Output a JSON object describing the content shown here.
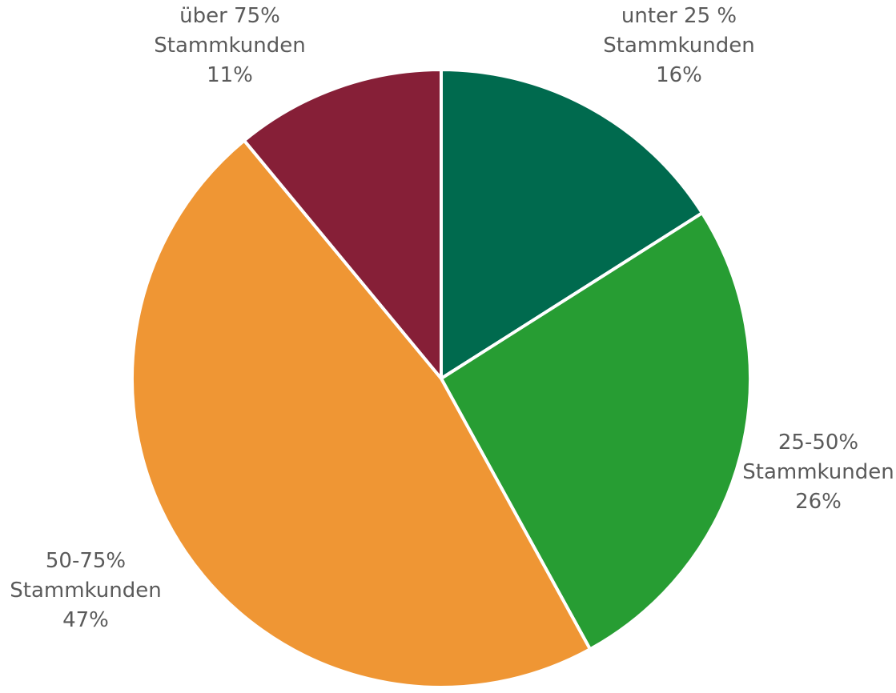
{
  "chart_data": {
    "type": "pie",
    "title": "",
    "start_angle_deg": 0,
    "direction": "clockwise",
    "slices": [
      {
        "line1": "unter 25 %",
        "line2": "Stammkunden",
        "line3": "16%",
        "value": 16,
        "color": "#006a4e"
      },
      {
        "line1": "25-50%",
        "line2": "Stammkunden",
        "line3": "26%",
        "value": 26,
        "color": "#279d33"
      },
      {
        "line1": "50-75%",
        "line2": "Stammkunden",
        "line3": "47%",
        "value": 47,
        "color": "#ef9634"
      },
      {
        "line1": "über 75%",
        "line2": "Stammkunden",
        "line3": "11%",
        "value": 11,
        "color": "#861f37"
      }
    ]
  }
}
